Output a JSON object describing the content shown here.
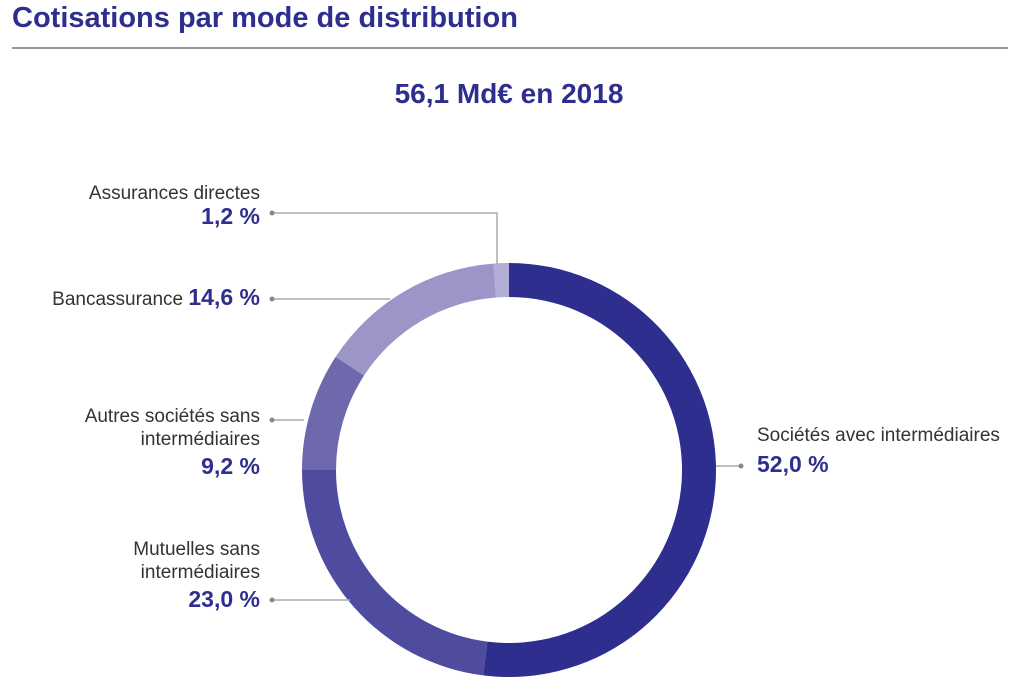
{
  "header": {
    "title": "Cotisations par mode de distribution"
  },
  "chart_data": {
    "type": "pie",
    "donut": true,
    "title": "56,1 Md€ en 2018",
    "categories": [
      "Sociétés avec intermédiaires",
      "Mutuelles sans intermédiaires",
      "Autres sociétés sans intermédiaires",
      "Bancassurance",
      "Assurances directes"
    ],
    "values": [
      52.0,
      23.0,
      9.2,
      14.6,
      1.2
    ],
    "labels": [
      "52,0 %",
      "23,0 %",
      "9,2 %",
      "14,6 %",
      "1,2 %"
    ],
    "colors": [
      "#2e2e8f",
      "#4f4b9f",
      "#6e68ad",
      "#9b95c8",
      "#b2aed6"
    ],
    "text_color": "#2e2e8f"
  }
}
